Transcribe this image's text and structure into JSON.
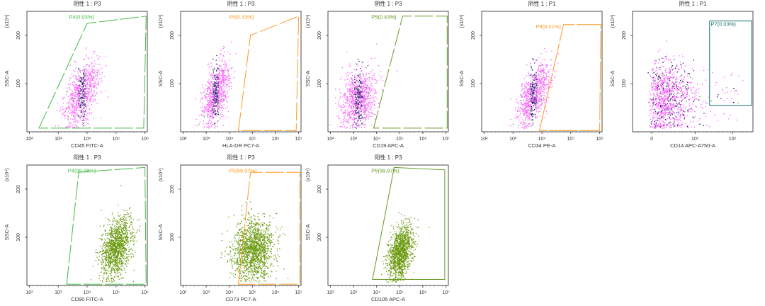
{
  "colors": {
    "negative_dot_primary": "#ff66ff",
    "negative_dot_secondary": "#1a1a66",
    "negative_dot_tertiary": "#3aaa3a",
    "positive_dot": "#6b9a10",
    "gate_green": "#44bb44",
    "gate_orange": "#ff9922",
    "gate_olive": "#669922",
    "gate_teal": "#1a7070",
    "gate_label_green": "#44bb44",
    "gate_label_orange": "#ff9922",
    "gate_label_olive": "#669922",
    "gate_label_teal": "#1a7070"
  },
  "chart_data": [
    {
      "type": "scatter",
      "title": "阴性 1 : P3",
      "xlabel": "CD45 FITC-A",
      "ylabel": "SSC-A",
      "y_multiplier": "(x10⁴)",
      "xscale": "log",
      "xticks": [
        "10²",
        "10³",
        "10⁴",
        "10⁵",
        "10⁶"
      ],
      "yticks": [
        "100",
        "200"
      ],
      "ylim": [
        0,
        250
      ],
      "gate": {
        "name": "P4",
        "percent": "0.03%",
        "label": "P4(0.03%)",
        "color": "#44bb44",
        "style": "dashed"
      },
      "population": {
        "kind": "negative",
        "x_center_log": 3.8,
        "y_center": 80,
        "x_spread": 0.25,
        "y_spread": 55,
        "tilt": 0.9,
        "n": 900
      }
    },
    {
      "type": "scatter",
      "title": "阴性 1 : P3",
      "xlabel": "HLA-DR PC7-A",
      "ylabel": "SSC-A",
      "y_multiplier": "(x10⁴)",
      "xscale": "log",
      "xticks": [
        "10²",
        "10³",
        "10⁴",
        "10⁵",
        "10⁶",
        "10⁷"
      ],
      "yticks": [
        "100",
        "200"
      ],
      "ylim": [
        0,
        250
      ],
      "gate": {
        "name": "P5",
        "percent": "0.33%",
        "label": "P5(0.33%)",
        "color": "#ff9922",
        "style": "dashed"
      },
      "population": {
        "kind": "negative",
        "x_center_log": 3.4,
        "y_center": 80,
        "x_spread": 0.25,
        "y_spread": 55,
        "tilt": 0.9,
        "n": 900
      }
    },
    {
      "type": "scatter",
      "title": "阴性 1 : P3",
      "xlabel": "CD19 APC-A",
      "ylabel": "SSC-A",
      "y_multiplier": "(x10⁴)",
      "xscale": "log",
      "xticks": [
        "10²",
        "10³",
        "10⁴",
        "10⁵",
        "10⁶",
        "10⁷"
      ],
      "yticks": [
        "100",
        "200"
      ],
      "ylim": [
        0,
        250
      ],
      "gate": {
        "name": "P5",
        "percent": "0.43%",
        "label": "P5(0.43%)",
        "color": "#669922",
        "style": "dashed"
      },
      "population": {
        "kind": "negative",
        "x_center_log": 3.2,
        "y_center": 70,
        "x_spread": 0.35,
        "y_spread": 50,
        "tilt": 0.6,
        "n": 1000
      }
    },
    {
      "type": "scatter",
      "title": "阴性 1 : P1",
      "xlabel": "CD34 PE-A",
      "ylabel": "SSC-A",
      "y_multiplier": "(x10⁴)",
      "xscale": "log",
      "xticks": [
        "10²",
        "10³",
        "10⁴",
        "10⁵",
        "10⁶"
      ],
      "yticks": [
        "100",
        "200"
      ],
      "ylim": [
        0,
        250
      ],
      "gate": {
        "name": "P8",
        "percent": "0.21%",
        "label": "P8(0.21%)",
        "color": "#ff9922",
        "style": "solid-dashed"
      },
      "population": {
        "kind": "negative",
        "x_center_log": 3.7,
        "y_center": 80,
        "x_spread": 0.22,
        "y_spread": 55,
        "tilt": 1.0,
        "n": 900
      }
    },
    {
      "type": "scatter",
      "title": "阴性 1 : P1",
      "xlabel": "CD14 APC-A750-A",
      "ylabel": "SSC-A",
      "y_multiplier": "(x10⁴)",
      "xscale": "linear",
      "xticks": [
        "0",
        "10⁵",
        "10⁶"
      ],
      "yticks": [
        "100",
        "200"
      ],
      "ylim": [
        0,
        250
      ],
      "gate": {
        "name": "P7",
        "percent": "0.03%",
        "label": "P7(0.03%)",
        "color": "#1a7070",
        "style": "solid"
      },
      "population": {
        "kind": "negative_wide",
        "x_center_log": 2.5,
        "y_center": 70,
        "x_spread": 0.9,
        "y_spread": 60,
        "tilt": 0.0,
        "n": 1400
      }
    },
    {
      "type": "scatter",
      "title": "阳性 1 : P3",
      "xlabel": "CD90 FITC-A",
      "ylabel": "SSC-A",
      "y_multiplier": "(x10⁴)",
      "xscale": "log",
      "xticks": [
        "10²",
        "10³",
        "10⁴",
        "10⁵",
        "10⁶"
      ],
      "yticks": [
        "100",
        "200"
      ],
      "ylim": [
        0,
        250
      ],
      "gate": {
        "name": "P4",
        "percent": "99.98%",
        "label": "P4(99.98%)",
        "color": "#44bb44",
        "style": "dashed"
      },
      "population": {
        "kind": "positive",
        "x_center_log": 5.0,
        "y_center": 80,
        "x_spread": 0.25,
        "y_spread": 50,
        "tilt": 0.6,
        "n": 1300
      }
    },
    {
      "type": "scatter",
      "title": "阳性 1 : P3",
      "xlabel": "CD73 PC7-A",
      "ylabel": "SSC-A",
      "y_multiplier": "(x10⁴)",
      "xscale": "log",
      "xticks": [
        "10²",
        "10³",
        "10⁴",
        "10⁵",
        "10⁶",
        "10⁷"
      ],
      "yticks": [
        "100",
        "200"
      ],
      "ylim": [
        0,
        250
      ],
      "gate": {
        "name": "P5",
        "percent": "99.97%",
        "label": "P5(99.97%)",
        "color": "#ff9922",
        "style": "dashed"
      },
      "population": {
        "kind": "positive",
        "x_center_log": 5.0,
        "y_center": 75,
        "x_spread": 0.45,
        "y_spread": 50,
        "tilt": 0.3,
        "n": 1500
      }
    },
    {
      "type": "scatter",
      "title": "阳性 1 : P3",
      "xlabel": "CD105 APC-A",
      "ylabel": "SSC-A",
      "y_multiplier": "(x10⁴)",
      "xscale": "log",
      "xticks": [
        "10²",
        "10³",
        "10⁴",
        "10⁵",
        "10⁶",
        "10⁷"
      ],
      "yticks": [
        "100",
        "200"
      ],
      "ylim": [
        0,
        250
      ],
      "gate": {
        "name": "P5",
        "percent": "99.97%",
        "label": "P5(99.97%)",
        "color": "#669922",
        "style": "solid"
      },
      "population": {
        "kind": "positive",
        "x_center_log": 5.0,
        "y_center": 70,
        "x_spread": 0.25,
        "y_spread": 45,
        "tilt": 0.7,
        "n": 1300
      }
    }
  ]
}
